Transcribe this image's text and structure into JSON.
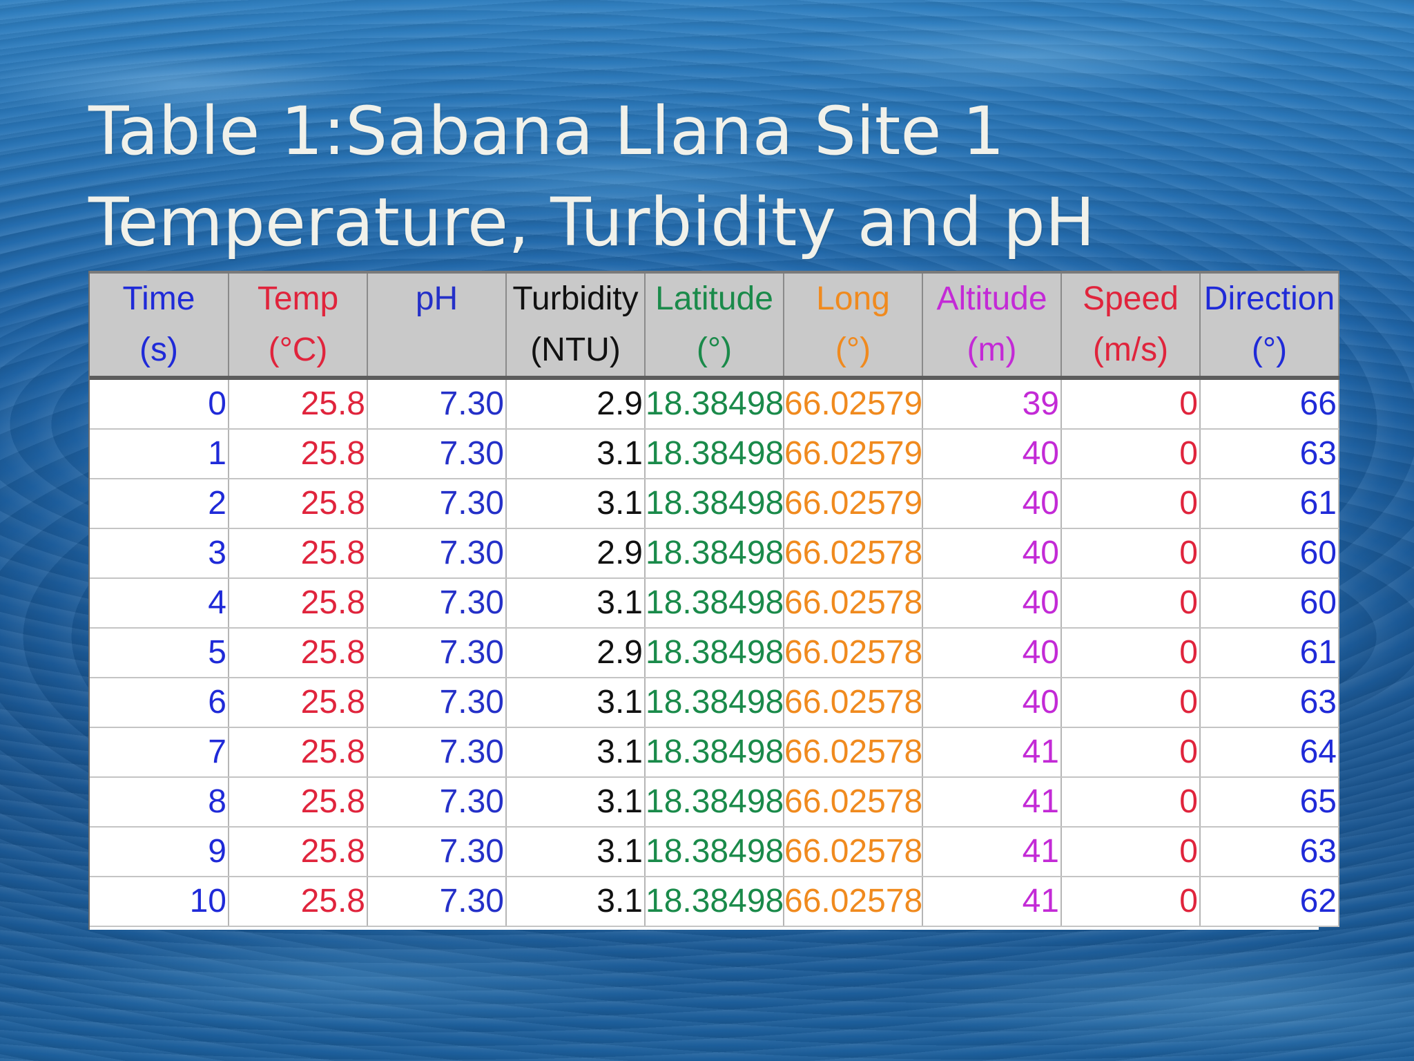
{
  "slide": {
    "title_line1": "Table 1:Sabana Llana Site 1",
    "title_line2": "Temperature, Turbidity and pH"
  },
  "table": {
    "columns": [
      {
        "key": "time",
        "label": "Time",
        "unit": "(s)",
        "color": "#1f2ad8"
      },
      {
        "key": "temp",
        "label": "Temp",
        "unit": "(°C)",
        "color": "#e0243c"
      },
      {
        "key": "ph",
        "label": "pH",
        "unit": "",
        "color": "#2430c8"
      },
      {
        "key": "turb",
        "label": "Turbidity",
        "unit": "(NTU)",
        "color": "#111111"
      },
      {
        "key": "lat",
        "label": "Latitude",
        "unit": "(°)",
        "color": "#1a8a4a"
      },
      {
        "key": "long",
        "label": "Long",
        "unit": "(°)",
        "color": "#f08a1e"
      },
      {
        "key": "alt",
        "label": "Altitude",
        "unit": "(m)",
        "color": "#c32ad6"
      },
      {
        "key": "speed",
        "label": "Speed",
        "unit": "(m/s)",
        "color": "#e0243c"
      },
      {
        "key": "dir",
        "label": "Direction",
        "unit": "(°)",
        "color": "#1f2ad8"
      }
    ],
    "rows": [
      {
        "time": "0",
        "temp": "25.8",
        "ph": "7.30",
        "turb": "2.9",
        "lat": "18.38498",
        "long": "66.02579",
        "alt": "39",
        "speed": "0",
        "dir": "66"
      },
      {
        "time": "1",
        "temp": "25.8",
        "ph": "7.30",
        "turb": "3.1",
        "lat": "18.38498",
        "long": "66.02579",
        "alt": "40",
        "speed": "0",
        "dir": "63"
      },
      {
        "time": "2",
        "temp": "25.8",
        "ph": "7.30",
        "turb": "3.1",
        "lat": "18.38498",
        "long": "66.02579",
        "alt": "40",
        "speed": "0",
        "dir": "61"
      },
      {
        "time": "3",
        "temp": "25.8",
        "ph": "7.30",
        "turb": "2.9",
        "lat": "18.38498",
        "long": "66.02578",
        "alt": "40",
        "speed": "0",
        "dir": "60"
      },
      {
        "time": "4",
        "temp": "25.8",
        "ph": "7.30",
        "turb": "3.1",
        "lat": "18.38498",
        "long": "66.02578",
        "alt": "40",
        "speed": "0",
        "dir": "60"
      },
      {
        "time": "5",
        "temp": "25.8",
        "ph": "7.30",
        "turb": "2.9",
        "lat": "18.38498",
        "long": "66.02578",
        "alt": "40",
        "speed": "0",
        "dir": "61"
      },
      {
        "time": "6",
        "temp": "25.8",
        "ph": "7.30",
        "turb": "3.1",
        "lat": "18.38498",
        "long": "66.02578",
        "alt": "40",
        "speed": "0",
        "dir": "63"
      },
      {
        "time": "7",
        "temp": "25.8",
        "ph": "7.30",
        "turb": "3.1",
        "lat": "18.38498",
        "long": "66.02578",
        "alt": "41",
        "speed": "0",
        "dir": "64"
      },
      {
        "time": "8",
        "temp": "25.8",
        "ph": "7.30",
        "turb": "3.1",
        "lat": "18.38498",
        "long": "66.02578",
        "alt": "41",
        "speed": "0",
        "dir": "65"
      },
      {
        "time": "9",
        "temp": "25.8",
        "ph": "7.30",
        "turb": "3.1",
        "lat": "18.38498",
        "long": "66.02578",
        "alt": "41",
        "speed": "0",
        "dir": "63"
      },
      {
        "time": "10",
        "temp": "25.8",
        "ph": "7.30",
        "turb": "3.1",
        "lat": "18.38498",
        "long": "66.02578",
        "alt": "41",
        "speed": "0",
        "dir": "62"
      }
    ]
  },
  "chart_data": {
    "type": "table",
    "title": "Table 1:Sabana Llana Site 1 Temperature, Turbidity and pH",
    "columns": [
      "Time (s)",
      "Temp (°C)",
      "pH",
      "Turbidity (NTU)",
      "Latitude (°)",
      "Long (°)",
      "Altitude (m)",
      "Speed (m/s)",
      "Direction (°)"
    ],
    "rows": [
      [
        0,
        25.8,
        7.3,
        2.9,
        18.38498,
        66.02579,
        39,
        0,
        66
      ],
      [
        1,
        25.8,
        7.3,
        3.1,
        18.38498,
        66.02579,
        40,
        0,
        63
      ],
      [
        2,
        25.8,
        7.3,
        3.1,
        18.38498,
        66.02579,
        40,
        0,
        61
      ],
      [
        3,
        25.8,
        7.3,
        2.9,
        18.38498,
        66.02578,
        40,
        0,
        60
      ],
      [
        4,
        25.8,
        7.3,
        3.1,
        18.38498,
        66.02578,
        40,
        0,
        60
      ],
      [
        5,
        25.8,
        7.3,
        2.9,
        18.38498,
        66.02578,
        40,
        0,
        61
      ],
      [
        6,
        25.8,
        7.3,
        3.1,
        18.38498,
        66.02578,
        40,
        0,
        63
      ],
      [
        7,
        25.8,
        7.3,
        3.1,
        18.38498,
        66.02578,
        41,
        0,
        64
      ],
      [
        8,
        25.8,
        7.3,
        3.1,
        18.38498,
        66.02578,
        41,
        0,
        65
      ],
      [
        9,
        25.8,
        7.3,
        3.1,
        18.38498,
        66.02578,
        41,
        0,
        63
      ],
      [
        10,
        25.8,
        7.3,
        3.1,
        18.38498,
        66.02578,
        41,
        0,
        62
      ]
    ]
  }
}
